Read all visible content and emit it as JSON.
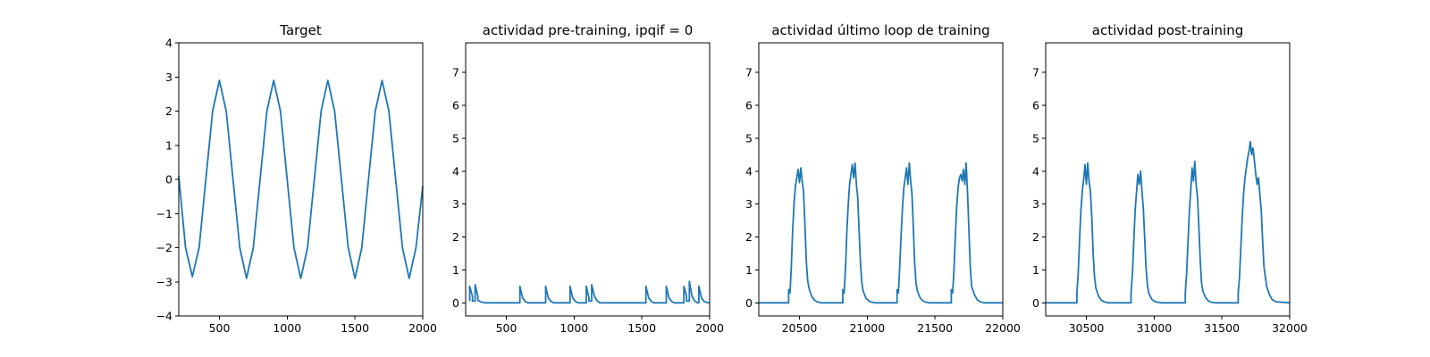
{
  "chart_data": [
    {
      "type": "line",
      "title": "Target",
      "xlabel": "",
      "ylabel": "",
      "xlim": [
        200,
        2000
      ],
      "ylim": [
        -4,
        4
      ],
      "xticks": [
        500,
        1000,
        1500,
        2000
      ],
      "yticks": [
        -4,
        -3,
        -2,
        -1,
        0,
        1,
        2,
        3,
        4
      ],
      "grid": false,
      "series": [
        {
          "color": "#1f77b4",
          "x": [
            200,
            250,
            300,
            350,
            400,
            450,
            500,
            550,
            600,
            650,
            700,
            750,
            800,
            850,
            900,
            950,
            1000,
            1050,
            1100,
            1150,
            1200,
            1250,
            1300,
            1350,
            1400,
            1450,
            1500,
            1550,
            1600,
            1650,
            1700,
            1750,
            1800,
            1850,
            1900,
            1950,
            2000
          ],
          "y": [
            0.1,
            -2.0,
            -2.85,
            -2.0,
            0.0,
            2.0,
            2.9,
            2.0,
            0.0,
            -2.0,
            -2.9,
            -2.0,
            0.0,
            2.0,
            2.9,
            2.0,
            0.0,
            -2.0,
            -2.9,
            -2.0,
            0.0,
            2.0,
            2.9,
            2.0,
            0.0,
            -2.0,
            -2.9,
            -2.0,
            0.0,
            2.0,
            2.9,
            2.0,
            0.0,
            -2.0,
            -2.9,
            -2.0,
            -0.2
          ]
        }
      ]
    },
    {
      "type": "line",
      "title": "actividad pre-training, ipqif = 0",
      "xlabel": "",
      "ylabel": "",
      "xlim": [
        200,
        2000
      ],
      "ylim": [
        -0.4,
        7.9
      ],
      "xticks": [
        500,
        1000,
        1500,
        2000
      ],
      "yticks": [
        0,
        1,
        2,
        3,
        4,
        5,
        6,
        7
      ],
      "grid": false,
      "series": [
        {
          "color": "#1f77b4",
          "x": [
            230,
            230,
            250,
            250,
            270,
            270,
            290,
            290,
            310,
            330,
            350,
            600,
            600,
            620,
            640,
            660,
            790,
            790,
            810,
            830,
            850,
            970,
            970,
            990,
            1010,
            1030,
            1090,
            1090,
            1110,
            1110,
            1130,
            1130,
            1150,
            1170,
            1190,
            1530,
            1530,
            1550,
            1570,
            1590,
            1680,
            1680,
            1700,
            1720,
            1740,
            1810,
            1810,
            1830,
            1830,
            1850,
            1850,
            1870,
            1890,
            1910,
            1920,
            1920,
            1940,
            1960,
            1980,
            2000
          ],
          "y": [
            0.05,
            0.5,
            0.2,
            0.05,
            0.05,
            0.55,
            0.2,
            0.08,
            0.03,
            0.01,
            0.0,
            0.0,
            0.5,
            0.15,
            0.04,
            0.0,
            0.0,
            0.5,
            0.15,
            0.04,
            0.0,
            0.0,
            0.5,
            0.15,
            0.04,
            0.0,
            0.0,
            0.5,
            0.15,
            0.05,
            0.05,
            0.55,
            0.2,
            0.06,
            0.0,
            0.0,
            0.5,
            0.15,
            0.04,
            0.0,
            0.0,
            0.5,
            0.15,
            0.04,
            0.0,
            0.0,
            0.5,
            0.2,
            0.05,
            0.05,
            0.65,
            0.2,
            0.05,
            0.0,
            0.0,
            0.5,
            0.15,
            0.04,
            0.01,
            0.0
          ]
        }
      ]
    },
    {
      "type": "line",
      "title": "actividad último loop de training",
      "xlabel": "",
      "ylabel": "",
      "xlim": [
        20200,
        22000
      ],
      "ylim": [
        -0.4,
        7.9
      ],
      "xticks": [
        20500,
        21000,
        21500,
        22000
      ],
      "yticks": [
        0,
        1,
        2,
        3,
        4,
        5,
        6,
        7
      ],
      "grid": false,
      "series": [
        {
          "color": "#1f77b4",
          "x": [
            20200,
            20420,
            20420,
            20430,
            20440,
            20450,
            20460,
            20470,
            20480,
            20490,
            20500,
            20510,
            20520,
            20530,
            20540,
            20550,
            20560,
            20570,
            20590,
            20610,
            20630,
            20660,
            20820,
            20820,
            20830,
            20840,
            20850,
            20860,
            20870,
            20880,
            20890,
            20900,
            20910,
            20920,
            20930,
            20940,
            20950,
            20960,
            20970,
            20990,
            21010,
            21030,
            21060,
            21220,
            21220,
            21230,
            21240,
            21250,
            21260,
            21270,
            21280,
            21290,
            21300,
            21310,
            21320,
            21330,
            21340,
            21350,
            21360,
            21370,
            21390,
            21410,
            21430,
            21460,
            21620,
            21620,
            21630,
            21640,
            21650,
            21660,
            21670,
            21680,
            21690,
            21700,
            21710,
            21720,
            21730,
            21740,
            21750,
            21760,
            21770,
            21790,
            21810,
            21830,
            21860,
            22000
          ],
          "y": [
            0,
            0,
            0.4,
            0.3,
            1.1,
            2.2,
            3.0,
            3.55,
            3.8,
            4.05,
            3.65,
            4.1,
            3.7,
            3.4,
            2.4,
            1.3,
            0.7,
            0.45,
            0.2,
            0.08,
            0.03,
            0,
            0,
            0.4,
            0.3,
            1.1,
            2.2,
            3.0,
            3.6,
            3.9,
            4.2,
            3.8,
            4.25,
            3.6,
            3.2,
            2.2,
            1.2,
            0.6,
            0.35,
            0.15,
            0.06,
            0.02,
            0,
            0,
            0.4,
            0.3,
            1.1,
            2.1,
            2.9,
            3.5,
            3.8,
            4.1,
            3.6,
            4.25,
            3.7,
            3.3,
            2.3,
            1.2,
            0.6,
            0.35,
            0.15,
            0.06,
            0.02,
            0,
            0,
            0.4,
            0.3,
            1.0,
            2.0,
            2.9,
            3.5,
            3.8,
            3.9,
            3.7,
            4.05,
            3.6,
            4.25,
            3.3,
            2.2,
            1.1,
            0.5,
            0.25,
            0.1,
            0.04,
            0,
            0
          ]
        }
      ]
    },
    {
      "type": "line",
      "title": "actividad post-training",
      "xlabel": "",
      "ylabel": "",
      "xlim": [
        30200,
        32000
      ],
      "ylim": [
        -0.4,
        7.9
      ],
      "xticks": [
        30500,
        31000,
        31500,
        32000
      ],
      "yticks": [
        0,
        1,
        2,
        3,
        4,
        5,
        6,
        7
      ],
      "grid": false,
      "series": [
        {
          "color": "#1f77b4",
          "x": [
            30200,
            30430,
            30430,
            30440,
            30450,
            30460,
            30470,
            30480,
            30490,
            30500,
            30510,
            30520,
            30530,
            30540,
            30550,
            30560,
            30570,
            30590,
            30610,
            30630,
            30660,
            30830,
            30830,
            30840,
            30850,
            30860,
            30870,
            30880,
            30890,
            30900,
            30910,
            30920,
            30930,
            30940,
            30950,
            30960,
            30980,
            31000,
            31020,
            31050,
            31230,
            31230,
            31240,
            31250,
            31260,
            31270,
            31280,
            31290,
            31300,
            31310,
            31320,
            31330,
            31340,
            31350,
            31360,
            31380,
            31400,
            31420,
            31450,
            31620,
            31620,
            31630,
            31640,
            31650,
            31660,
            31670,
            31680,
            31690,
            31700,
            31710,
            31720,
            31730,
            31740,
            31750,
            31760,
            31770,
            31780,
            31790,
            31800,
            31810,
            31830,
            31850,
            31870,
            31900,
            32000
          ],
          "y": [
            0,
            0,
            0.3,
            0.9,
            1.9,
            2.8,
            3.4,
            3.75,
            4.2,
            3.6,
            4.25,
            3.7,
            3.4,
            2.6,
            1.5,
            0.8,
            0.45,
            0.2,
            0.08,
            0.03,
            0,
            0,
            0.3,
            0.9,
            1.9,
            2.8,
            3.35,
            3.9,
            3.6,
            4.0,
            3.4,
            2.9,
            2.0,
            1.1,
            0.55,
            0.3,
            0.12,
            0.05,
            0.02,
            0,
            0,
            0.3,
            0.9,
            1.9,
            2.8,
            3.4,
            4.1,
            3.7,
            4.3,
            3.6,
            3.2,
            2.3,
            1.3,
            0.6,
            0.35,
            0.15,
            0.06,
            0.02,
            0,
            0,
            0.3,
            0.8,
            1.7,
            2.6,
            3.3,
            3.8,
            4.1,
            4.4,
            4.6,
            4.9,
            4.5,
            4.7,
            4.3,
            3.9,
            3.6,
            3.8,
            3.3,
            2.8,
            1.9,
            1.1,
            0.5,
            0.25,
            0.1,
            0.03,
            0
          ]
        }
      ]
    }
  ]
}
